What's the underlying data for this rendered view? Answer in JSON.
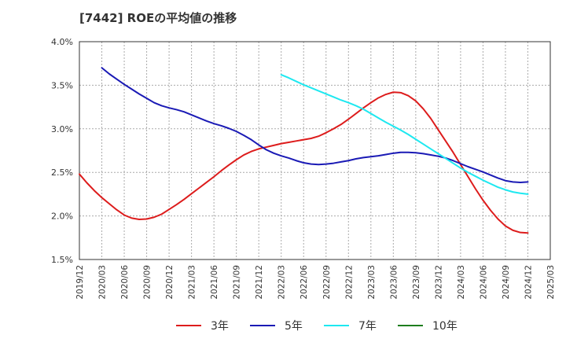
{
  "title": "[7442]  ROEの平均値の推移",
  "chart_data": {
    "type": "line",
    "title": "[7442]  ROEの平均値の推移",
    "xlabel": "",
    "ylabel": "",
    "ylim": [
      1.5,
      4.0
    ],
    "y_ticks": [
      "1.5%",
      "2.0%",
      "2.5%",
      "3.0%",
      "3.5%",
      "4.0%"
    ],
    "x_ticks": [
      "2019/12",
      "2020/03",
      "2020/06",
      "2020/09",
      "2020/12",
      "2021/03",
      "2021/06",
      "2021/09",
      "2021/12",
      "2022/03",
      "2022/06",
      "2022/09",
      "2022/12",
      "2023/03",
      "2023/06",
      "2023/09",
      "2023/12",
      "2024/03",
      "2024/06",
      "2024/09",
      "2024/12",
      "2025/03"
    ],
    "grid": true,
    "legend_position": "bottom",
    "series": [
      {
        "name": "3年",
        "color": "#dd1c1c",
        "points": [
          [
            "2019/12",
            2.48
          ],
          [
            "2020/01",
            2.38
          ],
          [
            "2020/02",
            2.29
          ],
          [
            "2020/03",
            2.21
          ],
          [
            "2020/04",
            2.14
          ],
          [
            "2020/05",
            2.07
          ],
          [
            "2020/06",
            2.01
          ],
          [
            "2020/07",
            1.975
          ],
          [
            "2020/08",
            1.96
          ],
          [
            "2020/09",
            1.965
          ],
          [
            "2020/10",
            1.985
          ],
          [
            "2020/11",
            2.02
          ],
          [
            "2020/12",
            2.075
          ],
          [
            "2021/01",
            2.13
          ],
          [
            "2021/02",
            2.19
          ],
          [
            "2021/03",
            2.255
          ],
          [
            "2021/04",
            2.32
          ],
          [
            "2021/05",
            2.385
          ],
          [
            "2021/06",
            2.45
          ],
          [
            "2021/07",
            2.52
          ],
          [
            "2021/08",
            2.585
          ],
          [
            "2021/09",
            2.645
          ],
          [
            "2021/10",
            2.7
          ],
          [
            "2021/11",
            2.74
          ],
          [
            "2021/12",
            2.77
          ],
          [
            "2022/01",
            2.79
          ],
          [
            "2022/02",
            2.81
          ],
          [
            "2022/03",
            2.83
          ],
          [
            "2022/04",
            2.845
          ],
          [
            "2022/05",
            2.86
          ],
          [
            "2022/06",
            2.875
          ],
          [
            "2022/07",
            2.89
          ],
          [
            "2022/08",
            2.915
          ],
          [
            "2022/09",
            2.955
          ],
          [
            "2022/10",
            3.0
          ],
          [
            "2022/11",
            3.05
          ],
          [
            "2022/12",
            3.11
          ],
          [
            "2023/01",
            3.175
          ],
          [
            "2023/02",
            3.24
          ],
          [
            "2023/03",
            3.3
          ],
          [
            "2023/04",
            3.355
          ],
          [
            "2023/05",
            3.395
          ],
          [
            "2023/06",
            3.42
          ],
          [
            "2023/07",
            3.415
          ],
          [
            "2023/08",
            3.38
          ],
          [
            "2023/09",
            3.32
          ],
          [
            "2023/10",
            3.23
          ],
          [
            "2023/11",
            3.12
          ],
          [
            "2023/12",
            2.99
          ],
          [
            "2024/01",
            2.86
          ],
          [
            "2024/02",
            2.73
          ],
          [
            "2024/03",
            2.59
          ],
          [
            "2024/04",
            2.45
          ],
          [
            "2024/05",
            2.31
          ],
          [
            "2024/06",
            2.18
          ],
          [
            "2024/07",
            2.065
          ],
          [
            "2024/08",
            1.965
          ],
          [
            "2024/09",
            1.885
          ],
          [
            "2024/10",
            1.835
          ],
          [
            "2024/11",
            1.81
          ],
          [
            "2024/12",
            1.805
          ]
        ]
      },
      {
        "name": "5年",
        "color": "#1a1ab5",
        "points": [
          [
            "2020/03",
            3.7
          ],
          [
            "2020/04",
            3.63
          ],
          [
            "2020/05",
            3.57
          ],
          [
            "2020/06",
            3.51
          ],
          [
            "2020/07",
            3.455
          ],
          [
            "2020/08",
            3.4
          ],
          [
            "2020/09",
            3.35
          ],
          [
            "2020/10",
            3.3
          ],
          [
            "2020/11",
            3.265
          ],
          [
            "2020/12",
            3.24
          ],
          [
            "2021/01",
            3.22
          ],
          [
            "2021/02",
            3.195
          ],
          [
            "2021/03",
            3.16
          ],
          [
            "2021/04",
            3.125
          ],
          [
            "2021/05",
            3.09
          ],
          [
            "2021/06",
            3.06
          ],
          [
            "2021/07",
            3.035
          ],
          [
            "2021/08",
            3.005
          ],
          [
            "2021/09",
            2.97
          ],
          [
            "2021/10",
            2.925
          ],
          [
            "2021/11",
            2.875
          ],
          [
            "2021/12",
            2.815
          ],
          [
            "2022/01",
            2.76
          ],
          [
            "2022/02",
            2.72
          ],
          [
            "2022/03",
            2.69
          ],
          [
            "2022/04",
            2.665
          ],
          [
            "2022/05",
            2.635
          ],
          [
            "2022/06",
            2.61
          ],
          [
            "2022/07",
            2.595
          ],
          [
            "2022/08",
            2.59
          ],
          [
            "2022/09",
            2.595
          ],
          [
            "2022/10",
            2.605
          ],
          [
            "2022/11",
            2.62
          ],
          [
            "2022/12",
            2.635
          ],
          [
            "2023/01",
            2.655
          ],
          [
            "2023/02",
            2.67
          ],
          [
            "2023/03",
            2.68
          ],
          [
            "2023/04",
            2.69
          ],
          [
            "2023/05",
            2.705
          ],
          [
            "2023/06",
            2.72
          ],
          [
            "2023/07",
            2.73
          ],
          [
            "2023/08",
            2.73
          ],
          [
            "2023/09",
            2.725
          ],
          [
            "2023/10",
            2.715
          ],
          [
            "2023/11",
            2.7
          ],
          [
            "2023/12",
            2.685
          ],
          [
            "2024/01",
            2.665
          ],
          [
            "2024/02",
            2.635
          ],
          [
            "2024/03",
            2.6
          ],
          [
            "2024/04",
            2.565
          ],
          [
            "2024/05",
            2.535
          ],
          [
            "2024/06",
            2.505
          ],
          [
            "2024/07",
            2.47
          ],
          [
            "2024/08",
            2.435
          ],
          [
            "2024/09",
            2.405
          ],
          [
            "2024/10",
            2.39
          ],
          [
            "2024/11",
            2.385
          ],
          [
            "2024/12",
            2.39
          ]
        ]
      },
      {
        "name": "7年",
        "color": "#1ee8f0",
        "points": [
          [
            "2022/03",
            3.62
          ],
          [
            "2022/04",
            3.585
          ],
          [
            "2022/05",
            3.545
          ],
          [
            "2022/06",
            3.505
          ],
          [
            "2022/07",
            3.47
          ],
          [
            "2022/08",
            3.435
          ],
          [
            "2022/09",
            3.4
          ],
          [
            "2022/10",
            3.365
          ],
          [
            "2022/11",
            3.33
          ],
          [
            "2022/12",
            3.3
          ],
          [
            "2023/01",
            3.265
          ],
          [
            "2023/02",
            3.225
          ],
          [
            "2023/03",
            3.175
          ],
          [
            "2023/04",
            3.125
          ],
          [
            "2023/05",
            3.075
          ],
          [
            "2023/06",
            3.03
          ],
          [
            "2023/07",
            2.985
          ],
          [
            "2023/08",
            2.935
          ],
          [
            "2023/09",
            2.88
          ],
          [
            "2023/10",
            2.825
          ],
          [
            "2023/11",
            2.77
          ],
          [
            "2023/12",
            2.715
          ],
          [
            "2024/01",
            2.66
          ],
          [
            "2024/02",
            2.605
          ],
          [
            "2024/03",
            2.55
          ],
          [
            "2024/04",
            2.5
          ],
          [
            "2024/05",
            2.455
          ],
          [
            "2024/06",
            2.41
          ],
          [
            "2024/07",
            2.37
          ],
          [
            "2024/08",
            2.33
          ],
          [
            "2024/09",
            2.3
          ],
          [
            "2024/10",
            2.275
          ],
          [
            "2024/11",
            2.26
          ],
          [
            "2024/12",
            2.25
          ]
        ]
      },
      {
        "name": "10年",
        "color": "#1e7d1e",
        "points": []
      }
    ]
  }
}
